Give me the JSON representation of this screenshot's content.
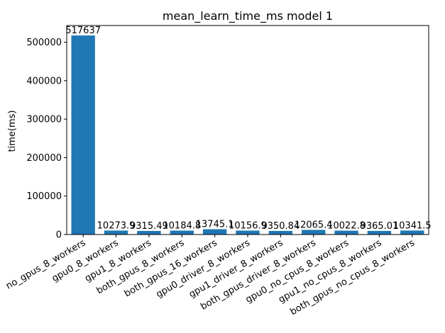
{
  "chart_data": {
    "type": "bar",
    "title": "mean_learn_time_ms model 1",
    "xlabel": "",
    "ylabel": "time(ms)",
    "ylim": [
      0,
      543519
    ],
    "yticks": [
      0,
      100000,
      200000,
      300000,
      400000,
      500000
    ],
    "grid": false,
    "bar_color": "#1f77b4",
    "categories": [
      "no_gpus_8_workers",
      "gpu0_8_workers",
      "gpu1_8_workers",
      "both_gpus_8_workers",
      "both_gpus_16_workers",
      "gpu0_driver_8_workers",
      "gpu1_driver_8_workers",
      "both_gpus_driver_8_workers",
      "gpu0_no_cpus_8_workers",
      "gpu1_no_cpus_8_workers",
      "both_gpus_no_cpus_8_workers"
    ],
    "values": [
      517637,
      10273.9,
      9315.49,
      10184.8,
      13745.1,
      10156.9,
      9350.84,
      12065.4,
      10022.8,
      9365.01,
      10341.5
    ],
    "value_labels": [
      "517637",
      "10273.9",
      "9315.49",
      "10184.8",
      "13745.1",
      "10156.9",
      "9350.84",
      "12065.4",
      "10022.8",
      "9365.01",
      "10341.5"
    ]
  }
}
